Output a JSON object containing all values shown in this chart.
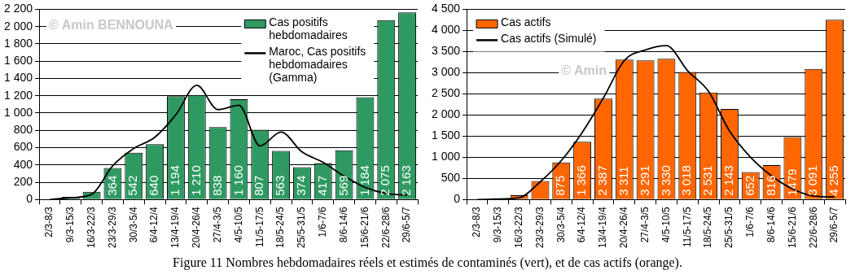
{
  "chart_data": [
    {
      "type": "bar",
      "categories": [
        "2/3-8/3",
        "9/3-15/3",
        "16/3-22/3",
        "23/3-29/3",
        "30/3-5/4",
        "6/4-12/4",
        "13/4-19/4",
        "20/4-26/4",
        "27/4-3/5",
        "4/5-10/5",
        "11/5-17/5",
        "18/5-24/5",
        "25/5-31/5",
        "1/6-7/6",
        "8/6-14/6",
        "15/6-21/6",
        "22/6-28/6",
        "29/6-5/7"
      ],
      "series": [
        {
          "name": "Cas positifs hebdomadaires",
          "type": "bar",
          "color": "#2e9a62",
          "values": [
            null,
            30,
            90,
            364,
            542,
            640,
            1194,
            1210,
            838,
            1160,
            807,
            563,
            374,
            417,
            569,
            1184,
            2075,
            2163
          ],
          "value_labels": [
            null,
            null,
            null,
            "364",
            "542",
            "640",
            "1 194",
            "1 210",
            "838",
            "1 160",
            "807",
            "563",
            "374",
            "417",
            "569",
            "1 184",
            "2 075",
            "2 163"
          ]
        },
        {
          "name": "Maroc, Cas positifs hebdomadaires (Gamma)",
          "type": "line",
          "color": "#000000",
          "values": [
            0,
            20,
            60,
            390,
            590,
            720,
            980,
            1320,
            1040,
            1090,
            620,
            780,
            550,
            430,
            270,
            140,
            70,
            50
          ]
        }
      ],
      "ylim": [
        0,
        2200
      ],
      "yticks": [
        0,
        200,
        400,
        600,
        800,
        {
          "value": 1000,
          "label": "1 000"
        },
        {
          "value": 1200,
          "label": "1 200"
        },
        {
          "value": 1400,
          "label": "1 400"
        },
        {
          "value": 1600,
          "label": "1 600"
        },
        {
          "value": 1800,
          "label": "1 800"
        },
        {
          "value": 2000,
          "label": "2 000"
        },
        {
          "value": 2200,
          "label": "2 200"
        }
      ],
      "grid": "y",
      "legend": "top right",
      "marker": "none",
      "annotations": [
        "© Amin BENNOUNA"
      ]
    },
    {
      "type": "bar",
      "categories": [
        "2/3-8/3",
        "9/3-15/3",
        "16/3-22/3",
        "23/3-29/3",
        "30/3-5/4",
        "6/4-12/4",
        "13/4-19/4",
        "20/4-26/4",
        "27/4-3/5",
        "4/5-10/5",
        "11/5-17/5",
        "18/5-24/5",
        "25/5-31/5",
        "1/6-7/6",
        "8/6-14/6",
        "15/6-21/6",
        "22/6-28/6",
        "29/6-5/7"
      ],
      "series": [
        {
          "name": "Cas actifs",
          "type": "bar",
          "color": "#ff6600",
          "values": [
            null,
            10,
            100,
            440,
            875,
            1366,
            2387,
            3311,
            3291,
            3330,
            3018,
            2531,
            2143,
            652,
            816,
            1479,
            3091,
            4255
          ],
          "value_labels": [
            null,
            null,
            null,
            null,
            "875",
            "1 366",
            "2 387",
            "3 311",
            "3 291",
            "3 330",
            "3 018",
            "2 531",
            "2 143",
            "652",
            "816",
            "1479",
            "3 091",
            "4 255"
          ]
        },
        {
          "name": "Cas actifs (Simulé)",
          "type": "line",
          "color": "#000000",
          "values": [
            0,
            10,
            40,
            420,
            920,
            1590,
            2400,
            3290,
            3540,
            3640,
            3050,
            2560,
            1620,
            1000,
            560,
            250,
            80,
            60
          ]
        }
      ],
      "ylim": [
        0,
        4500
      ],
      "yticks": [
        0,
        500,
        {
          "value": 1000,
          "label": "1 000"
        },
        {
          "value": 1500,
          "label": "1 500"
        },
        {
          "value": 2000,
          "label": "2 000"
        },
        {
          "value": 2500,
          "label": "2 500"
        },
        {
          "value": 3000,
          "label": "3 000"
        },
        {
          "value": 3500,
          "label": "3 500"
        },
        {
          "value": 4000,
          "label": "4 000"
        },
        {
          "value": 4500,
          "label": "4 500"
        }
      ],
      "grid": "y",
      "legend": "top left",
      "marker": "none",
      "annotations": [
        "© Amin"
      ]
    },
    {
      "type": "other",
      "title": "Figure  11 Nombres hebdomadaires réels et estimés de contaminés (vert), et de cas actifs (orange)."
    }
  ]
}
